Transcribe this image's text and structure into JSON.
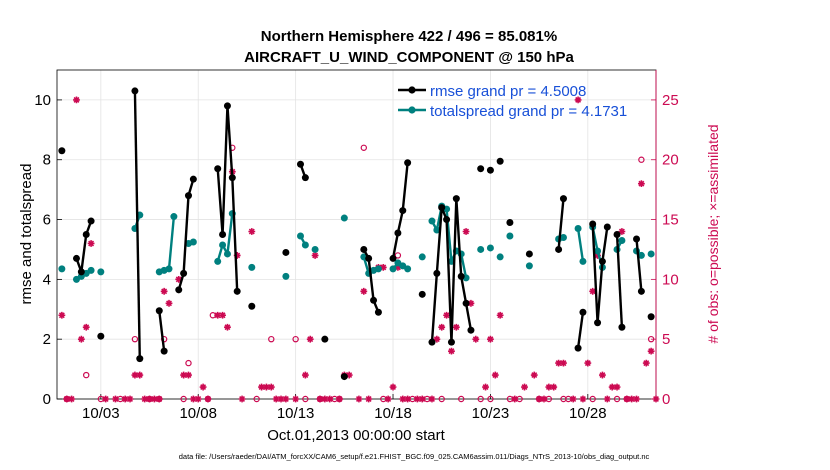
{
  "chart_data": {
    "type": "line",
    "title": "Northern Hemisphere 422 / 496 = 85.081%",
    "subtitle": "AIRCRAFT_U_WIND_COMPONENT @ 150 hPa",
    "xlabel": "Oct.01,2013 00:00:00 start",
    "ylabel": "rmse and totalspread",
    "y2label": "# of obs: o=possible; ×=assimilated",
    "footnote": "data file: /Users/raeder/DAI/ATM_forcXX/CAM6_setup/f.e21.FHIST_BGC.f09_025.CAM6assim.011/Diags_NTrS_2013-10/obs_diag_output.nc",
    "xlim": [
      0.75,
      31.5
    ],
    "ylim": [
      0,
      11
    ],
    "y2lim": [
      0,
      27.5
    ],
    "xticks": [
      3,
      8,
      13,
      18,
      23,
      28
    ],
    "xticklabels": [
      "10/03",
      "10/08",
      "10/13",
      "10/18",
      "10/23",
      "10/28"
    ],
    "yticks": [
      0,
      2,
      4,
      6,
      8,
      10
    ],
    "y2ticks": [
      0,
      5,
      10,
      15,
      20,
      25
    ],
    "grid": true,
    "legend_position": "top-right",
    "colors": {
      "rmse": "#000000",
      "spread": "#00807f",
      "obs": "#cc0a52",
      "legend_text": "#1850d8"
    },
    "series": [
      {
        "name": "rmse",
        "legend": "rmse grand pr = 4.5008",
        "segments": [
          [
            [
              1,
              8.3
            ]
          ],
          [
            [
              1.75,
              4.7
            ],
            [
              2,
              4.25
            ],
            [
              2.25,
              5.5
            ],
            [
              2.5,
              5.95
            ]
          ],
          [
            [
              3,
              2.1
            ]
          ],
          [
            [
              4.75,
              10.3
            ],
            [
              5,
              1.35
            ]
          ],
          [
            [
              6,
              2.95
            ],
            [
              6.25,
              1.6
            ]
          ],
          [
            [
              7,
              3.65
            ],
            [
              7.25,
              4.2
            ],
            [
              7.5,
              6.8
            ],
            [
              7.75,
              7.35
            ]
          ],
          [
            [
              9,
              7.7
            ],
            [
              9.25,
              5.5
            ],
            [
              9.5,
              9.8
            ],
            [
              9.75,
              7.4
            ],
            [
              10,
              3.6
            ]
          ],
          [
            [
              10.75,
              3.1
            ]
          ],
          [
            [
              12.5,
              4.9
            ]
          ],
          [
            [
              13.25,
              7.85
            ],
            [
              13.5,
              7.4
            ]
          ],
          [
            [
              14.5,
              2.0
            ]
          ],
          [
            [
              15.5,
              0.75
            ]
          ],
          [
            [
              16.5,
              5.0
            ],
            [
              16.75,
              4.7
            ],
            [
              17,
              3.3
            ],
            [
              17.25,
              2.9
            ]
          ],
          [
            [
              18,
              4.7
            ],
            [
              18.25,
              5.55
            ],
            [
              18.5,
              6.3
            ],
            [
              18.75,
              7.9
            ]
          ],
          [
            [
              19.5,
              3.5
            ]
          ],
          [
            [
              20,
              1.9
            ],
            [
              20.25,
              4.2
            ],
            [
              20.5,
              6.4
            ],
            [
              20.75,
              6.0
            ],
            [
              21,
              1.9
            ],
            [
              21.25,
              6.7
            ],
            [
              21.5,
              4.1
            ],
            [
              21.75,
              3.2
            ],
            [
              22,
              2.3
            ]
          ],
          [
            [
              22.5,
              7.7
            ]
          ],
          [
            [
              23,
              7.65
            ]
          ],
          [
            [
              23.5,
              7.95
            ]
          ],
          [
            [
              24,
              5.9
            ]
          ],
          [
            [
              25,
              4.85
            ]
          ],
          [
            [
              26.5,
              5.0
            ],
            [
              26.75,
              6.7
            ]
          ],
          [
            [
              27.5,
              1.7
            ],
            [
              27.75,
              2.9
            ]
          ],
          [
            [
              28.25,
              5.85
            ],
            [
              28.5,
              2.55
            ],
            [
              28.75,
              4.6
            ],
            [
              29,
              5.75
            ]
          ],
          [
            [
              29.5,
              5.5
            ],
            [
              29.75,
              2.4
            ]
          ],
          [
            [
              30.5,
              5.35
            ],
            [
              30.75,
              3.6
            ]
          ],
          [
            [
              31.25,
              2.75
            ]
          ]
        ]
      },
      {
        "name": "totalspread",
        "legend": "totalspread grand pr = 4.1731",
        "segments": [
          [
            [
              1,
              4.35
            ]
          ],
          [
            [
              1.75,
              4.0
            ],
            [
              2,
              4.1
            ],
            [
              2.25,
              4.2
            ],
            [
              2.5,
              4.3
            ]
          ],
          [
            [
              3,
              4.25
            ]
          ],
          [
            [
              4.75,
              5.7
            ],
            [
              5,
              6.15
            ]
          ],
          [
            [
              6,
              4.25
            ],
            [
              6.25,
              4.3
            ],
            [
              6.5,
              4.35
            ],
            [
              6.75,
              6.1
            ]
          ],
          [
            [
              7.5,
              5.2
            ],
            [
              7.75,
              5.25
            ]
          ],
          [
            [
              9,
              4.6
            ],
            [
              9.25,
              5.15
            ],
            [
              9.5,
              4.85
            ],
            [
              9.75,
              6.2
            ]
          ],
          [
            [
              10.75,
              4.4
            ]
          ],
          [
            [
              12.5,
              4.1
            ]
          ],
          [
            [
              13.25,
              5.45
            ],
            [
              13.5,
              5.15
            ]
          ],
          [
            [
              14,
              5.0
            ]
          ],
          [
            [
              15.5,
              6.05
            ]
          ],
          [
            [
              16.5,
              4.75
            ],
            [
              16.75,
              4.2
            ],
            [
              17,
              4.3
            ],
            [
              17.25,
              4.35
            ]
          ],
          [
            [
              18,
              4.35
            ],
            [
              18.25,
              4.55
            ],
            [
              18.5,
              4.45
            ],
            [
              18.75,
              4.35
            ]
          ],
          [
            [
              19.5,
              4.75
            ]
          ],
          [
            [
              20,
              5.95
            ],
            [
              20.25,
              5.65
            ],
            [
              20.5,
              6.45
            ],
            [
              20.75,
              6.35
            ],
            [
              21,
              4.6
            ],
            [
              21.25,
              4.95
            ],
            [
              21.5,
              4.85
            ],
            [
              21.75,
              4.05
            ]
          ],
          [
            [
              22.5,
              5.0
            ]
          ],
          [
            [
              23,
              5.05
            ]
          ],
          [
            [
              23.5,
              4.75
            ]
          ],
          [
            [
              24,
              5.45
            ]
          ],
          [
            [
              25,
              4.45
            ]
          ],
          [
            [
              26.5,
              5.35
            ],
            [
              26.75,
              5.4
            ]
          ],
          [
            [
              27.5,
              5.7
            ],
            [
              27.75,
              4.6
            ]
          ],
          [
            [
              28.25,
              5.75
            ],
            [
              28.5,
              4.95
            ],
            [
              28.75,
              4.4
            ]
          ],
          [
            [
              29.5,
              5.0
            ],
            [
              29.75,
              5.3
            ]
          ],
          [
            [
              30.5,
              4.95
            ],
            [
              30.75,
              4.8
            ]
          ],
          [
            [
              31.25,
              4.85
            ]
          ]
        ]
      }
    ],
    "obs_possible": [
      [
        1.25,
        0
      ],
      [
        2.25,
        2
      ],
      [
        3,
        0
      ],
      [
        4,
        0
      ],
      [
        4.75,
        5
      ],
      [
        5.5,
        0
      ],
      [
        6,
        0
      ],
      [
        6.25,
        5
      ],
      [
        7.25,
        0
      ],
      [
        7.5,
        3
      ],
      [
        8.5,
        0
      ],
      [
        8.75,
        7
      ],
      [
        9.75,
        21
      ],
      [
        11,
        0
      ],
      [
        11.75,
        5
      ],
      [
        13,
        5
      ],
      [
        13.5,
        0
      ],
      [
        14.25,
        0
      ],
      [
        15,
        0
      ],
      [
        15.25,
        0
      ],
      [
        16.5,
        21
      ],
      [
        17.5,
        0
      ],
      [
        18.25,
        12
      ],
      [
        19,
        0
      ],
      [
        19.75,
        0
      ],
      [
        20.5,
        0
      ],
      [
        21.5,
        0
      ],
      [
        22.5,
        0
      ],
      [
        23,
        0
      ],
      [
        24,
        0
      ],
      [
        24.5,
        0
      ],
      [
        25.5,
        0
      ],
      [
        26,
        0
      ],
      [
        26.75,
        0
      ],
      [
        27,
        0
      ],
      [
        28.25,
        0
      ],
      [
        29.5,
        0
      ],
      [
        30,
        0
      ],
      [
        30.75,
        20
      ],
      [
        31.25,
        5
      ]
    ],
    "obs_assimilated": [
      [
        1,
        7
      ],
      [
        1.25,
        0
      ],
      [
        1.5,
        0
      ],
      [
        1.75,
        25
      ],
      [
        2,
        5
      ],
      [
        2.25,
        6
      ],
      [
        2.5,
        13
      ],
      [
        3.25,
        0
      ],
      [
        3.75,
        0
      ],
      [
        4.25,
        0
      ],
      [
        4.5,
        0
      ],
      [
        4.75,
        2
      ],
      [
        5,
        2
      ],
      [
        5.25,
        0
      ],
      [
        5.5,
        0
      ],
      [
        5.75,
        0
      ],
      [
        6,
        0
      ],
      [
        6.25,
        9
      ],
      [
        6.5,
        8
      ],
      [
        7,
        10
      ],
      [
        7.25,
        2
      ],
      [
        7.5,
        2
      ],
      [
        7.75,
        0
      ],
      [
        8,
        0
      ],
      [
        8.25,
        1
      ],
      [
        8.5,
        0
      ],
      [
        9,
        7
      ],
      [
        9.25,
        7
      ],
      [
        9.5,
        6
      ],
      [
        9.75,
        19
      ],
      [
        10,
        12
      ],
      [
        10.25,
        0
      ],
      [
        10.75,
        14
      ],
      [
        11.25,
        1
      ],
      [
        11.5,
        1
      ],
      [
        11.75,
        1
      ],
      [
        12,
        0
      ],
      [
        12.25,
        0
      ],
      [
        12.5,
        0
      ],
      [
        13,
        0
      ],
      [
        13.5,
        2
      ],
      [
        13.75,
        5
      ],
      [
        14,
        12
      ],
      [
        14.25,
        0
      ],
      [
        14.5,
        0
      ],
      [
        14.75,
        0
      ],
      [
        15.25,
        0
      ],
      [
        15.5,
        2
      ],
      [
        15.75,
        2
      ],
      [
        16.25,
        0
      ],
      [
        16.5,
        9
      ],
      [
        16.75,
        0
      ],
      [
        17.25,
        11
      ],
      [
        17.5,
        11
      ],
      [
        17.75,
        0
      ],
      [
        18,
        1
      ],
      [
        18.25,
        11
      ],
      [
        18.5,
        0
      ],
      [
        18.75,
        0
      ],
      [
        19.25,
        0
      ],
      [
        19.5,
        0
      ],
      [
        20,
        0
      ],
      [
        20.25,
        5
      ],
      [
        20.5,
        6
      ],
      [
        20.75,
        7
      ],
      [
        21,
        4
      ],
      [
        21.25,
        6
      ],
      [
        21.75,
        14
      ],
      [
        22,
        8
      ],
      [
        22.25,
        5
      ],
      [
        22.75,
        1
      ],
      [
        23,
        5
      ],
      [
        23.25,
        2
      ],
      [
        23.5,
        7
      ],
      [
        24.25,
        0
      ],
      [
        24.75,
        1
      ],
      [
        25.25,
        2
      ],
      [
        25.5,
        0
      ],
      [
        25.75,
        0
      ],
      [
        26,
        1
      ],
      [
        26.25,
        1
      ],
      [
        26.5,
        3
      ],
      [
        26.75,
        3
      ],
      [
        27.25,
        0
      ],
      [
        27.5,
        25
      ],
      [
        27.75,
        0
      ],
      [
        28,
        3
      ],
      [
        28.25,
        9
      ],
      [
        28.5,
        12
      ],
      [
        28.75,
        2
      ],
      [
        29,
        0
      ],
      [
        29.25,
        1
      ],
      [
        29.5,
        1
      ],
      [
        29.75,
        14
      ],
      [
        30,
        0
      ],
      [
        30.25,
        0
      ],
      [
        30.5,
        0
      ],
      [
        30.75,
        18
      ],
      [
        31,
        3
      ],
      [
        31.25,
        4
      ],
      [
        31.5,
        0
      ]
    ]
  }
}
